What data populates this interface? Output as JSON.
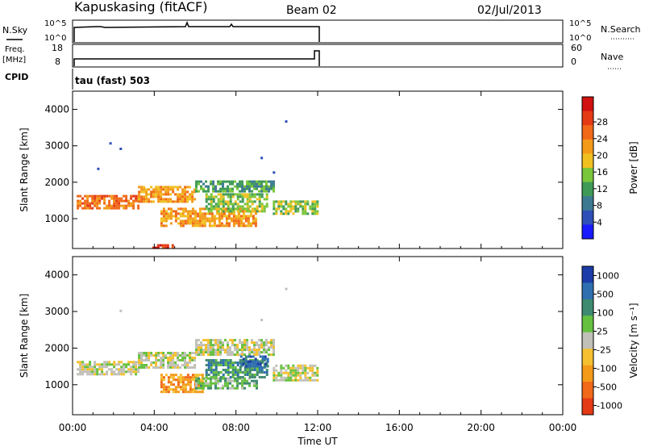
{
  "header": {
    "station": "Kapuskasing (fitACF)",
    "beam": "Beam 02",
    "date": "02/Jul/2013"
  },
  "panels": {
    "nsky_label": "N.Sky",
    "nsky_ticks": [
      "10^5",
      "10^0"
    ],
    "nsearch_label": "N.Search",
    "nsearch_ticks": [
      "10^5",
      "10^0"
    ],
    "freq_label_1": "Freq.",
    "freq_label_2": "[MHz]",
    "freq_ticks": [
      "18",
      "8"
    ],
    "nave_label": "Nave",
    "nave_ticks": [
      "60",
      "0"
    ],
    "cpid_label": "CPID",
    "cpid_text": "tau (fast) 503"
  },
  "chart_data": [
    {
      "type": "heatmap",
      "name": "power",
      "xlabel": "Time UT",
      "ylabel": "Slant Range [km]",
      "xlim": [
        0,
        24
      ],
      "ylim": [
        180,
        4500
      ],
      "xticks": [
        "00:00",
        "04:00",
        "08:00",
        "12:00",
        "16:00",
        "20:00",
        "00:00"
      ],
      "yticks": [
        1000,
        2000,
        3000,
        4000
      ],
      "colorbar": {
        "label": "Power [dB]",
        "ticks": [
          "4",
          "8",
          "12",
          "16",
          "20",
          "24",
          "28"
        ],
        "colors": [
          "#1a1aff",
          "#2f4fb8",
          "#3d7a92",
          "#3e9a56",
          "#7ac63a",
          "#f0c020",
          "#f39a19",
          "#f06818",
          "#e43a15",
          "#d11010"
        ]
      },
      "bands": [
        {
          "t0": 0.2,
          "t1": 3.2,
          "r0": 1300,
          "r1": 1650,
          "level": 7
        },
        {
          "t0": 3.2,
          "t1": 6.0,
          "r0": 1500,
          "r1": 1900,
          "level": 6
        },
        {
          "t0": 6.0,
          "t1": 9.8,
          "r0": 1750,
          "r1": 2050,
          "level": 3
        },
        {
          "t0": 9.8,
          "t1": 12.0,
          "r0": 1150,
          "r1": 1500,
          "level": 4
        },
        {
          "t0": 4.3,
          "t1": 9.0,
          "r0": 800,
          "r1": 1300,
          "level": 6
        },
        {
          "t0": 6.5,
          "t1": 9.5,
          "r0": 1200,
          "r1": 1700,
          "level": 4
        },
        {
          "t0": 3.9,
          "t1": 4.9,
          "r0": 190,
          "r1": 300,
          "level": 8
        }
      ],
      "scatter_points": [
        {
          "t": 1.8,
          "r": 3100
        },
        {
          "t": 2.3,
          "r": 2950
        },
        {
          "t": 9.2,
          "r": 2700
        },
        {
          "t": 10.4,
          "r": 3700
        },
        {
          "t": 1.2,
          "r": 2400
        },
        {
          "t": 9.8,
          "r": 2300
        }
      ]
    },
    {
      "type": "heatmap",
      "name": "velocity",
      "xlabel": "Time UT",
      "ylabel": "Slant Range [km]",
      "xlim": [
        0,
        24
      ],
      "ylim": [
        180,
        4500
      ],
      "xticks": [
        "00:00",
        "04:00",
        "08:00",
        "12:00",
        "16:00",
        "20:00",
        "00:00"
      ],
      "yticks": [
        1000,
        2000,
        3000,
        4000
      ],
      "colorbar": {
        "label": "Velocity [m s⁻¹]",
        "ticks": [
          "1000",
          "500",
          "100",
          "25",
          "-25",
          "-100",
          "-500",
          "-1000"
        ],
        "colors": [
          "#1c3ca8",
          "#2f6fb0",
          "#3e8a70",
          "#66c040",
          "#c0c0b8",
          "#f4c030",
          "#f39a19",
          "#f06818",
          "#e43a15"
        ]
      },
      "bands": [
        {
          "t0": 0.2,
          "t1": 3.2,
          "r0": 1300,
          "r1": 1650,
          "level": 4
        },
        {
          "t0": 3.2,
          "t1": 6.0,
          "r0": 1500,
          "r1": 1900,
          "level": 4
        },
        {
          "t0": 6.0,
          "t1": 9.8,
          "r0": 1800,
          "r1": 2250,
          "level": 4
        },
        {
          "t0": 9.8,
          "t1": 12.0,
          "r0": 1150,
          "r1": 1550,
          "level": 4
        },
        {
          "t0": 4.3,
          "t1": 6.4,
          "r0": 800,
          "r1": 1300,
          "level": 6
        },
        {
          "t0": 6.0,
          "t1": 9.0,
          "r0": 900,
          "r1": 1200,
          "level": 3
        },
        {
          "t0": 6.5,
          "t1": 9.5,
          "r0": 1200,
          "r1": 1700,
          "level": 2
        },
        {
          "t0": 8.2,
          "t1": 9.6,
          "r0": 1500,
          "r1": 1800,
          "level": 1
        }
      ],
      "scatter_points": [
        {
          "t": 2.3,
          "r": 3050
        },
        {
          "t": 10.4,
          "r": 3650
        },
        {
          "t": 9.2,
          "r": 2800
        }
      ]
    }
  ]
}
